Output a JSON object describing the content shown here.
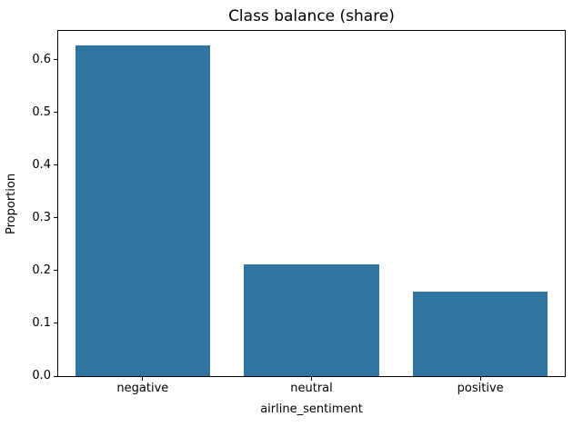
{
  "chart_data": {
    "type": "bar",
    "title": "Class balance (share)",
    "xlabel": "airline_sentiment",
    "ylabel": "Proportion",
    "categories": [
      "negative",
      "neutral",
      "positive"
    ],
    "values": [
      0.627,
      0.212,
      0.161
    ],
    "ylim": [
      0,
      0.655
    ],
    "yticks": [
      0,
      0.1,
      0.2,
      0.3,
      0.4,
      0.5,
      0.6
    ],
    "ytick_labels": [
      "0.0",
      "0.1",
      "0.2",
      "0.3",
      "0.4",
      "0.5",
      "0.6"
    ],
    "bar_width_fraction": 0.8,
    "grid": false,
    "legend_position": "none"
  },
  "colors": {
    "background": "#ffffff",
    "bar": "#3274a1",
    "spine": "#000000",
    "text": "#000000"
  }
}
